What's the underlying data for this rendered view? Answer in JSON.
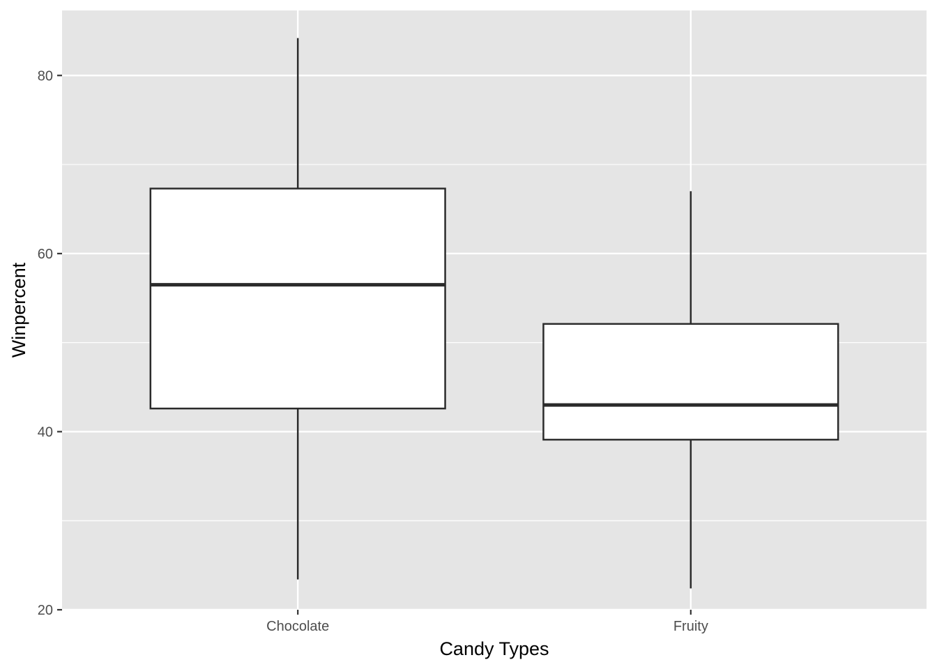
{
  "chart_data": {
    "type": "boxplot",
    "title": "",
    "xlabel": "Candy Types",
    "ylabel": "Winpercent",
    "categories": [
      "Chocolate",
      "Fruity"
    ],
    "boxes": [
      {
        "category": "Chocolate",
        "whisker_low": 23.4,
        "q1": 42.6,
        "median": 56.5,
        "q3": 67.3,
        "whisker_high": 84.2
      },
      {
        "category": "Fruity",
        "whisker_low": 22.4,
        "q1": 39.1,
        "median": 43.0,
        "q3": 52.1,
        "whisker_high": 67.0
      }
    ],
    "ylim": [
      20,
      87.3
    ],
    "y_ticks": [
      20,
      40,
      60,
      80
    ],
    "y_tick_labels": [
      "20",
      "40",
      "60",
      "80"
    ],
    "grid": true,
    "colors": {
      "panel": "#e5e5e5",
      "grid": "#ffffff",
      "box_fill": "#ffffff",
      "box_stroke": "#2b2b2b",
      "tick_text": "#4d4d4d",
      "axis_title": "#000000"
    }
  }
}
